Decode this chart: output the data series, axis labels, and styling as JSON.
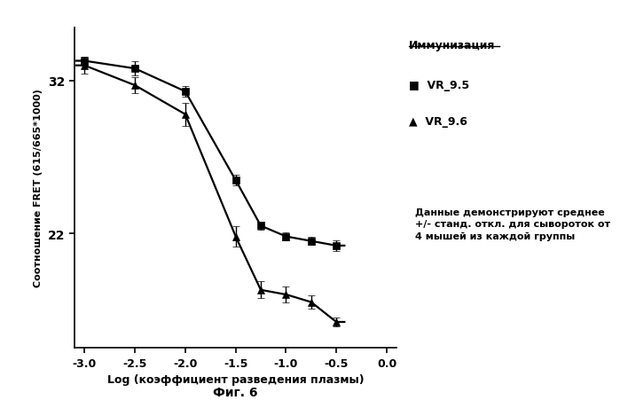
{
  "vr95_x": [
    -3.0,
    -2.5,
    -2.0,
    -1.5,
    -1.25,
    -1.0,
    -0.75,
    -0.5
  ],
  "vr95_y": [
    33.3,
    32.8,
    31.3,
    25.5,
    22.5,
    21.8,
    21.5,
    21.2
  ],
  "vr95_yerr": [
    0.25,
    0.45,
    0.35,
    0.35,
    0.25,
    0.25,
    0.25,
    0.35
  ],
  "vr96_x": [
    -3.0,
    -2.5,
    -2.0,
    -1.5,
    -1.25,
    -1.0,
    -0.75,
    -0.5
  ],
  "vr96_y": [
    33.0,
    31.7,
    29.8,
    21.8,
    18.3,
    18.0,
    17.5,
    16.2
  ],
  "vr96_yerr": [
    0.55,
    0.5,
    0.75,
    0.65,
    0.55,
    0.55,
    0.45,
    0.3
  ],
  "xlabel": "Log (коэффициент разведения плазмы)",
  "ylabel": "Соотношение FRET (615/665*1000)",
  "legend_title": "Иммунизация",
  "label_vr95": "VR_9.5",
  "label_vr96": "VR_9.6",
  "annotation_line1": "Данные демонстрируют среднее",
  "annotation_line2": "+/- станд. откл. для сывороток от",
  "annotation_line3": "4 мышей из каждой группы",
  "figure_label": "Фиг. 6",
  "xlim": [
    -3.1,
    0.1
  ],
  "ylim": [
    14.5,
    35.5
  ],
  "xticks": [
    -3.0,
    -2.5,
    -2.0,
    -1.5,
    -1.0,
    -0.5,
    0.0
  ],
  "yticks": [
    22,
    32
  ],
  "color": "#000000",
  "bg_color": "#ffffff"
}
